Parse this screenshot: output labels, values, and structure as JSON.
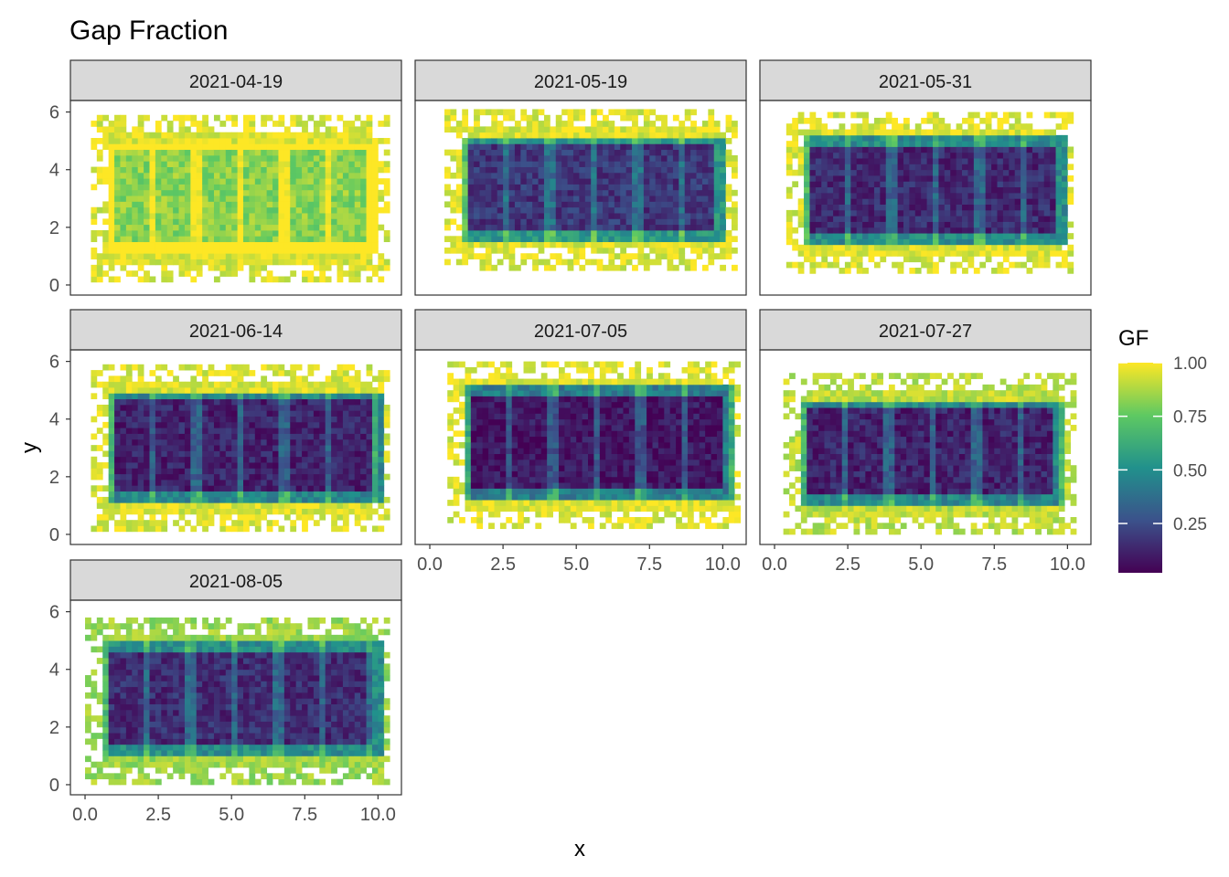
{
  "chart_data": {
    "type": "heatmap",
    "title": "Gap Fraction",
    "xlabel": "x",
    "ylabel": "y",
    "xlim": [
      -0.5,
      10.8
    ],
    "ylim": [
      -0.35,
      6.4
    ],
    "x_ticks": [
      "0.0",
      "2.5",
      "5.0",
      "7.5",
      "10.0"
    ],
    "y_ticks": [
      "0",
      "2",
      "4",
      "6"
    ],
    "legend": {
      "title": "GF",
      "labels": [
        "1.00",
        "0.75",
        "0.50",
        "0.25"
      ],
      "values": [
        1.0,
        0.75,
        0.5,
        0.25
      ],
      "range": [
        0.02,
        1.0
      ],
      "colors": [
        "#440154",
        "#3b528b",
        "#21918c",
        "#5ec962",
        "#fde725"
      ],
      "placement": "right"
    },
    "grid": false,
    "panels": [
      {
        "date": "2021-04-19",
        "approx_extent": {
          "x": [
            0.2,
            10.2
          ],
          "y": [
            0.1,
            5.8
          ]
        },
        "canopy_gf": 0.82,
        "border_gf": 0.95
      },
      {
        "date": "2021-05-19",
        "approx_extent": {
          "x": [
            0.5,
            10.3
          ],
          "y": [
            0.5,
            6.0
          ]
        },
        "canopy_gf": 0.18,
        "border_gf": 0.95
      },
      {
        "date": "2021-05-31",
        "approx_extent": {
          "x": [
            0.4,
            10.1
          ],
          "y": [
            0.4,
            6.0
          ]
        },
        "canopy_gf": 0.14,
        "border_gf": 0.95
      },
      {
        "date": "2021-06-14",
        "approx_extent": {
          "x": [
            0.2,
            10.3
          ],
          "y": [
            0.1,
            5.8
          ]
        },
        "canopy_gf": 0.12,
        "border_gf": 0.95
      },
      {
        "date": "2021-07-05",
        "approx_extent": {
          "x": [
            0.6,
            10.5
          ],
          "y": [
            0.2,
            6.0
          ]
        },
        "canopy_gf": 0.08,
        "border_gf": 0.95
      },
      {
        "date": "2021-07-27",
        "approx_extent": {
          "x": [
            0.3,
            10.1
          ],
          "y": [
            0.0,
            5.5
          ]
        },
        "canopy_gf": 0.12,
        "border_gf": 0.9
      },
      {
        "date": "2021-08-05",
        "approx_extent": {
          "x": [
            0.0,
            10.3
          ],
          "y": [
            0.0,
            5.8
          ]
        },
        "canopy_gf": 0.15,
        "border_gf": 0.85
      }
    ]
  }
}
